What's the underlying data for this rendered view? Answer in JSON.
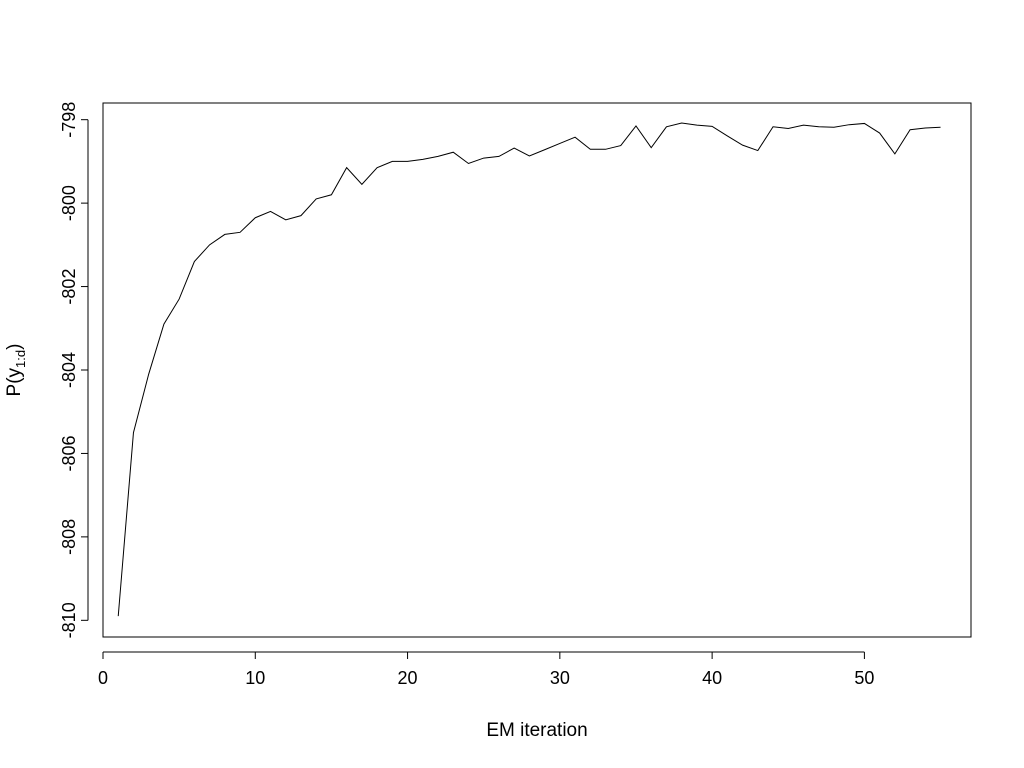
{
  "chart_data": {
    "type": "line",
    "title": "",
    "xlabel": "EM iteration",
    "ylabel": "P(y",
    "ylabel_subscript": "1:d",
    "ylabel_close": ")",
    "xlim": [
      0,
      57
    ],
    "ylim": [
      -810.4,
      -797.6
    ],
    "x_ticks": [
      0,
      10,
      20,
      30,
      40,
      50
    ],
    "x_tick_labels": [
      "0",
      "10",
      "20",
      "30",
      "40",
      "50"
    ],
    "y_ticks": [
      -810,
      -808,
      -806,
      -804,
      -802,
      -800,
      -798
    ],
    "y_tick_labels": [
      "-810",
      "-808",
      "-806",
      "-804",
      "-802",
      "-800",
      "-798"
    ],
    "grid": false,
    "line_color": "#000000",
    "x": [
      1,
      2,
      3,
      4,
      5,
      6,
      7,
      8,
      9,
      10,
      11,
      12,
      13,
      14,
      15,
      16,
      17,
      18,
      19,
      20,
      21,
      22,
      23,
      24,
      25,
      26,
      27,
      28,
      29,
      30,
      31,
      32,
      33,
      34,
      35,
      36,
      37,
      38,
      39,
      40,
      41,
      42,
      43,
      44,
      45,
      46,
      47,
      48,
      49,
      50,
      51,
      52,
      53,
      54,
      55
    ],
    "values": [
      -809.9,
      -805.5,
      -804.1,
      -802.9,
      -802.3,
      -801.4,
      -801.0,
      -800.75,
      -800.7,
      -800.35,
      -800.2,
      -800.4,
      -800.3,
      -799.9,
      -799.8,
      -799.15,
      -799.55,
      -799.15,
      -799.0,
      -799.0,
      -798.95,
      -798.88,
      -798.78,
      -799.05,
      -798.92,
      -798.88,
      -798.68,
      -798.87,
      -798.72,
      -798.57,
      -798.42,
      -798.71,
      -798.71,
      -798.62,
      -798.15,
      -798.67,
      -798.17,
      -798.08,
      -798.13,
      -798.16,
      -798.39,
      -798.61,
      -798.74,
      -798.17,
      -798.21,
      -798.13,
      -798.17,
      -798.18,
      -798.12,
      -798.09,
      -798.32,
      -798.82,
      -798.24,
      -798.2,
      -798.18
    ]
  }
}
